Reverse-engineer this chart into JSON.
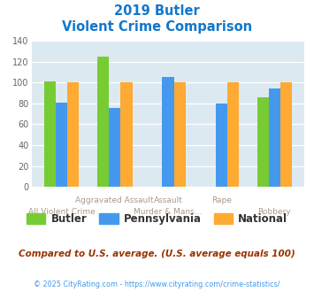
{
  "title_line1": "2019 Butler",
  "title_line2": "Violent Crime Comparison",
  "butler": [
    101,
    125,
    null,
    null,
    86
  ],
  "pennsylvania": [
    81,
    76,
    105,
    80,
    94
  ],
  "national": [
    100,
    100,
    100,
    100,
    100
  ],
  "butler_color": "#77cc33",
  "pennsylvania_color": "#4499ee",
  "national_color": "#ffaa33",
  "ylim": [
    0,
    140
  ],
  "yticks": [
    0,
    20,
    40,
    60,
    80,
    100,
    120,
    140
  ],
  "bg_color": "#dce9f0",
  "top_xlabels": [
    "",
    "Aggravated Assault",
    "Assault",
    "Rape",
    ""
  ],
  "bot_xlabels": [
    "All Violent Crime",
    "",
    "Murder & Mans...",
    "",
    "Robbery"
  ],
  "footer_text": "Compared to U.S. average. (U.S. average equals 100)",
  "copyright_text": "© 2025 CityRating.com - https://www.cityrating.com/crime-statistics/",
  "title_color": "#1177cc",
  "footer_color": "#993300",
  "copyright_color": "#4499ee",
  "label_color": "#aa9988"
}
